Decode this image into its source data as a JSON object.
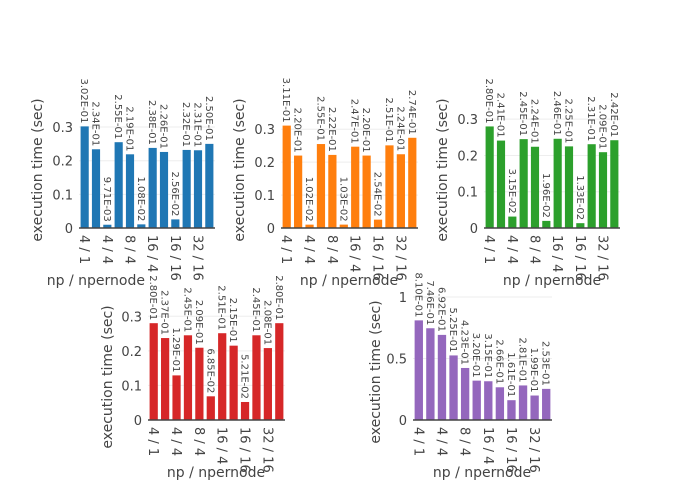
{
  "chart_data": [
    {
      "type": "bar",
      "color": "#1f77b4",
      "xlabel": "np / npernode",
      "ylabel": "execution time (sec)",
      "ylim": [
        0,
        0.318
      ],
      "yticks": [
        0,
        0.1,
        0.2,
        0.3
      ],
      "categories": [
        "4 / 1",
        "",
        "4 / 4",
        "",
        "8 / 4",
        "",
        "16 / 4",
        "",
        "16 / 16",
        "",
        "32 / 16",
        ""
      ],
      "values": [
        0.302,
        0.234,
        0.00971,
        0.255,
        0.219,
        0.0108,
        0.238,
        0.226,
        0.0256,
        0.232,
        0.231,
        0.25
      ],
      "grid": true
    },
    {
      "type": "bar",
      "color": "#ff7f0e",
      "xlabel": "np / npernode",
      "ylabel": "execution time (sec)",
      "ylim": [
        0,
        0.325
      ],
      "yticks": [
        0,
        0.1,
        0.2,
        0.3
      ],
      "categories": [
        "4 / 1",
        "",
        "4 / 4",
        "",
        "8 / 4",
        "",
        "16 / 4",
        "",
        "16 / 16",
        "",
        "32 / 16",
        ""
      ],
      "values": [
        0.311,
        0.22,
        0.0102,
        0.255,
        0.222,
        0.0103,
        0.247,
        0.22,
        0.0254,
        0.251,
        0.224,
        0.274
      ],
      "grid": true
    },
    {
      "type": "bar",
      "color": "#2ca02c",
      "xlabel": "np / npernode",
      "ylabel": "execution time (sec)",
      "ylim": [
        0,
        0.295
      ],
      "yticks": [
        0,
        0.1,
        0.2,
        0.3
      ],
      "categories": [
        "4 / 1",
        "",
        "4 / 4",
        "",
        "8 / 4",
        "",
        "16 / 4",
        "",
        "16 / 16",
        "",
        "32 / 16",
        ""
      ],
      "values": [
        0.28,
        0.241,
        0.0315,
        0.245,
        0.224,
        0.0196,
        0.246,
        0.225,
        0.0133,
        0.231,
        0.209,
        0.242
      ],
      "grid": true
    },
    {
      "type": "bar",
      "color": "#d62728",
      "xlabel": "np / npernode",
      "ylabel": "execution time (sec)",
      "ylim": [
        0,
        0.295
      ],
      "yticks": [
        0,
        0.1,
        0.2,
        0.3
      ],
      "categories": [
        "4 / 1",
        "",
        "4 / 4",
        "",
        "8 / 4",
        "",
        "16 / 4",
        "",
        "16 / 16",
        "",
        "32 / 16",
        ""
      ],
      "values": [
        0.28,
        0.237,
        0.129,
        0.245,
        0.209,
        0.0685,
        0.251,
        0.215,
        0.0521,
        0.245,
        0.208,
        0.28
      ],
      "grid": true
    },
    {
      "type": "bar",
      "color": "#9467bd",
      "xlabel": "np / npernode",
      "ylabel": "execution time (sec)",
      "ylim": [
        0,
        1.0
      ],
      "yticks": [
        0,
        0.5,
        1
      ],
      "categories": [
        "4 / 1",
        "",
        "4 / 4",
        "",
        "8 / 4",
        "",
        "16 / 4",
        "",
        "16 / 16",
        "",
        "32 / 16",
        ""
      ],
      "values": [
        0.81,
        0.746,
        0.692,
        0.525,
        0.423,
        0.32,
        0.315,
        0.266,
        0.161,
        0.281,
        0.199,
        0.253
      ],
      "grid": true
    }
  ]
}
